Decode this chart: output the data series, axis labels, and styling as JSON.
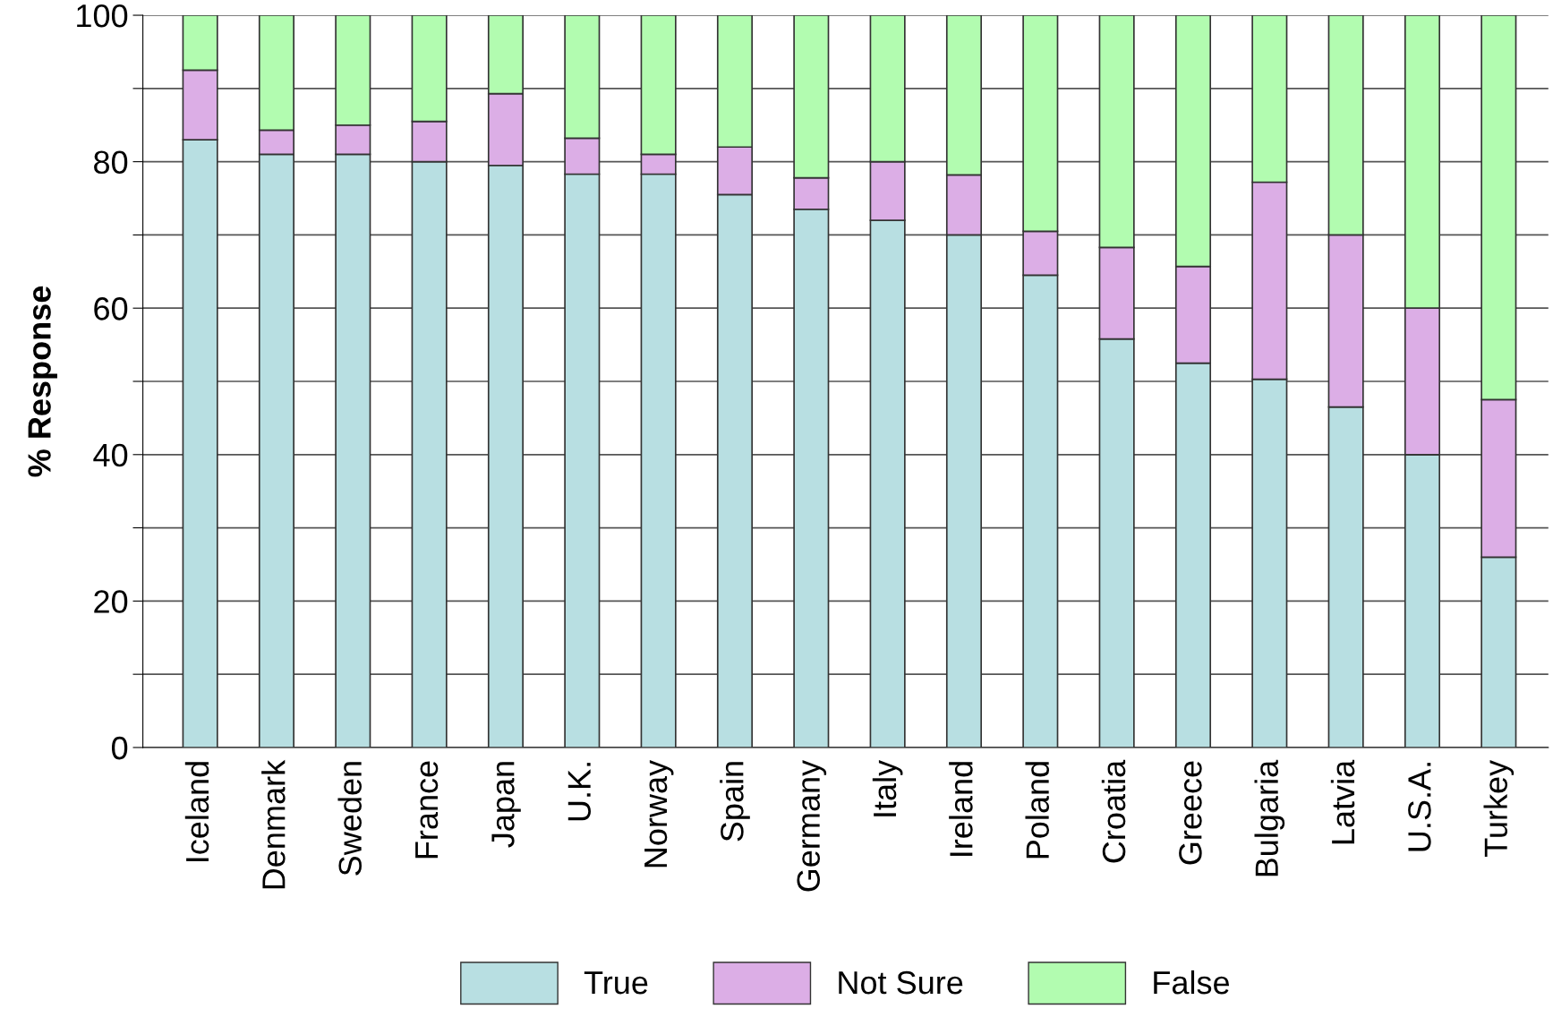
{
  "chart_data": {
    "type": "bar",
    "stacked": true,
    "ylabel": "% Response",
    "categories": [
      "Iceland",
      "Denmark",
      "Sweden",
      "France",
      "Japan",
      "U.K.",
      "Norway",
      "Spain",
      "Germany",
      "Italy",
      "Ireland",
      "Poland",
      "Croatia",
      "Greece",
      "Bulgaria",
      "Latvia",
      "U.S.A.",
      "Turkey"
    ],
    "series": [
      {
        "name": "True",
        "color": "#b8dfe2",
        "values": [
          83,
          81,
          81,
          80,
          79.5,
          78.3,
          78.3,
          75.5,
          73.5,
          72,
          70,
          64.5,
          55.8,
          52.5,
          50.3,
          46.5,
          40,
          26
        ]
      },
      {
        "name": "Not Sure",
        "color": "#dcaee6",
        "values": [
          9.5,
          3.3,
          4,
          5.5,
          9.8,
          4.9,
          2.7,
          6.5,
          4.3,
          8,
          8.2,
          6,
          12.5,
          13.2,
          26.9,
          23.5,
          20,
          21.5
        ]
      },
      {
        "name": "False",
        "color": "#b2fcb0",
        "values": [
          7.5,
          15.7,
          15,
          14.5,
          10.7,
          16.8,
          19,
          18,
          22.2,
          20,
          21.8,
          29.5,
          31.7,
          34.3,
          22.8,
          30,
          40,
          52.5
        ]
      }
    ],
    "ylim": [
      0,
      100
    ],
    "yticks": [
      0,
      {
        "value": 10,
        "label": null
      },
      20,
      {
        "value": 30,
        "label": null
      },
      40,
      {
        "value": 50,
        "label": null
      },
      60,
      {
        "value": 70,
        "label": null
      },
      80,
      {
        "value": 90,
        "label": null
      },
      100
    ],
    "grid": "y",
    "legend": "bottom"
  }
}
